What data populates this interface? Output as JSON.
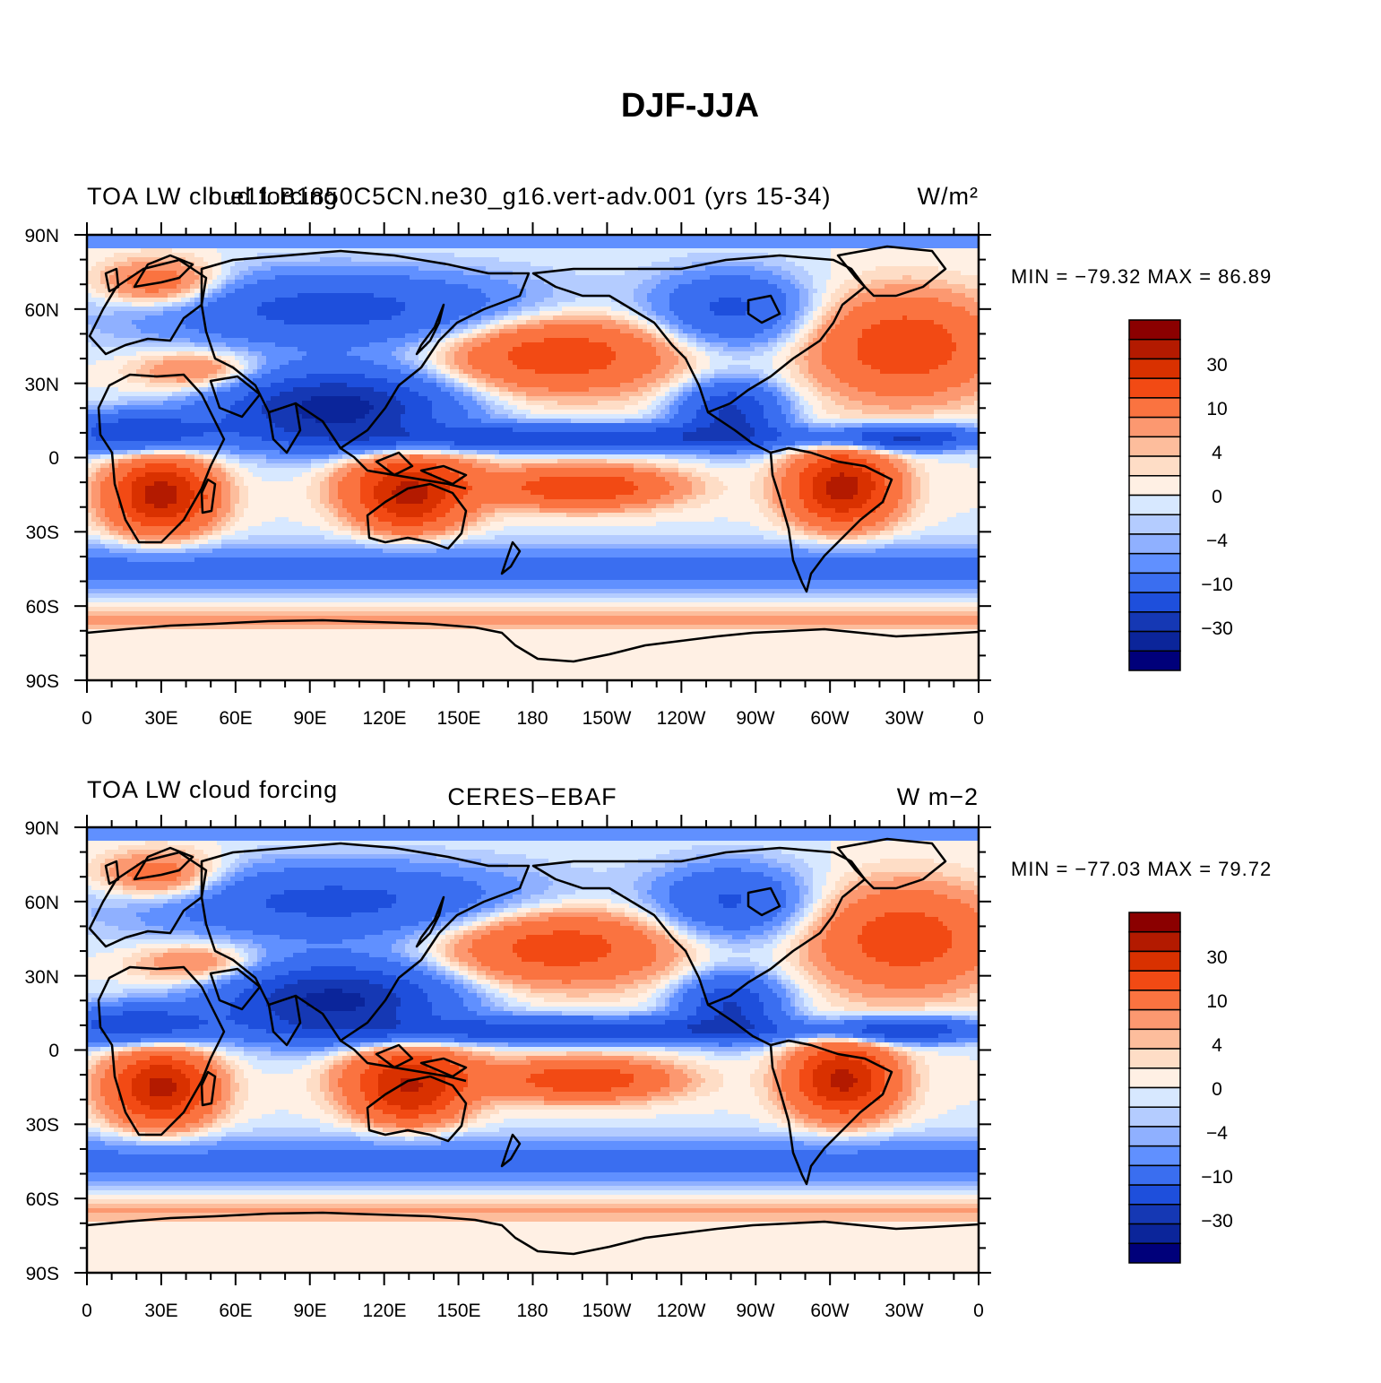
{
  "title": "DJF-JJA",
  "panels": [
    {
      "left_label": "TOA LW cloud forcing",
      "center_label": "b.e11.B1850C5CN.ne30_g16.vert-adv.001 (yrs 15-34)",
      "right_label": "W/m²",
      "min_max": "MIN = −79.32  MAX =   86.89",
      "field_scale": 1.0
    },
    {
      "left_label": "TOA LW cloud forcing",
      "center_label": "CERES−EBAF",
      "right_label": "W m−2",
      "min_max": "MIN = −77.03  MAX =   79.72",
      "field_scale": 0.96
    }
  ],
  "lat_labels": [
    "90N",
    "60N",
    "30N",
    "0",
    "30S",
    "60S",
    "90S"
  ],
  "lon_labels": [
    "0",
    "30E",
    "60E",
    "90E",
    "120E",
    "150E",
    "180",
    "150W",
    "120W",
    "90W",
    "60W",
    "30W",
    "0"
  ],
  "colorbar": {
    "labels": [
      "30",
      "10",
      "4",
      "0",
      "−4",
      "−10",
      "−30"
    ],
    "levels": [
      50,
      40,
      30,
      20,
      10,
      6,
      4,
      2,
      0,
      -2,
      -4,
      -6,
      -10,
      -20,
      -30,
      -40,
      -50
    ],
    "colors": [
      "#8b0000",
      "#b31a00",
      "#d93100",
      "#f24a14",
      "#fa7340",
      "#fc9870",
      "#fdbd9c",
      "#feddc6",
      "#fff0e4",
      "#d7e8ff",
      "#b4ccff",
      "#8fb0ff",
      "#6090ff",
      "#3a6ef0",
      "#1e4fdc",
      "#1538b4",
      "#0b259a",
      "#00007a"
    ]
  }
}
